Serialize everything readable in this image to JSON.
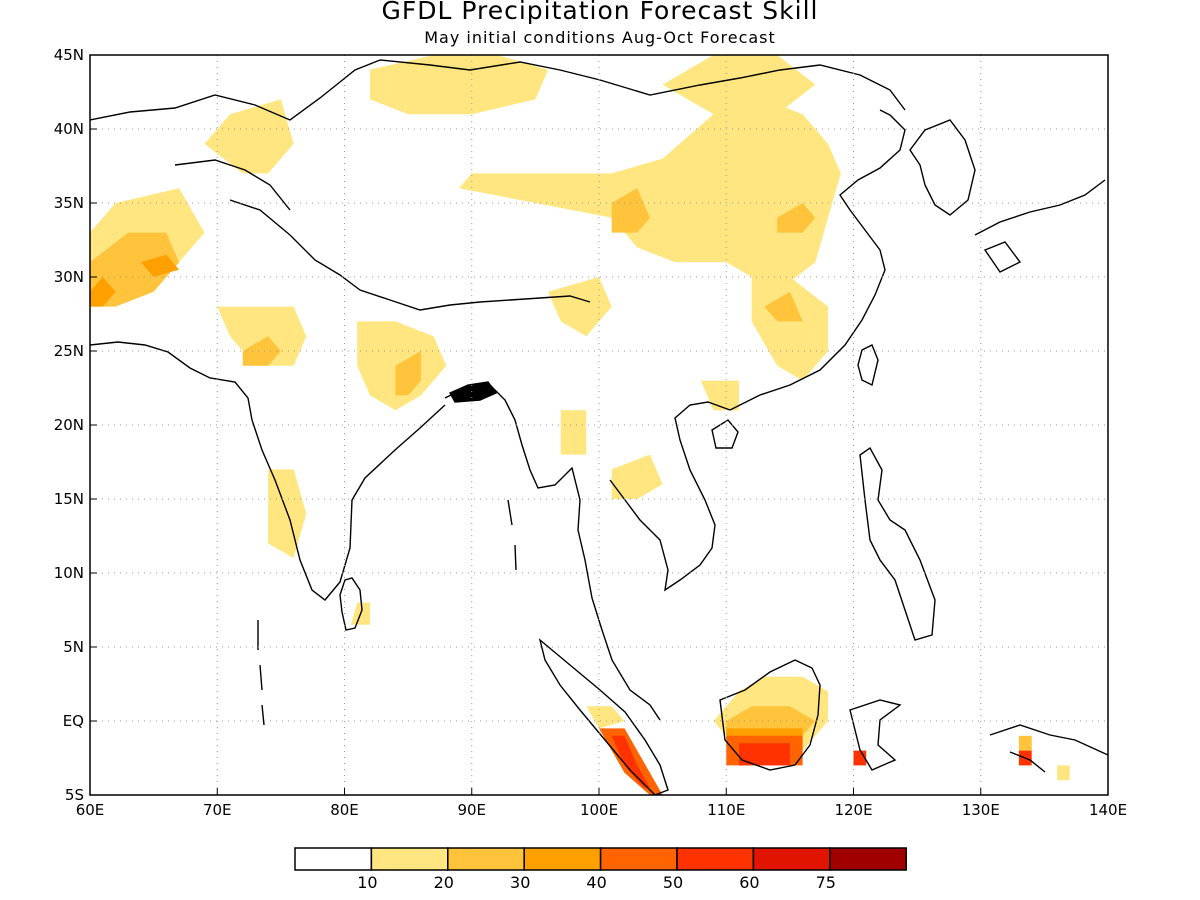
{
  "header": {
    "title": "GFDL Precipitation Forecast Skill",
    "subtitle": "May initial conditions  Aug-Oct Forecast"
  },
  "map": {
    "lon_range": [
      60,
      140
    ],
    "lat_range": [
      -5,
      45
    ],
    "lon_ticks": [
      {
        "value": 60,
        "label": "60E"
      },
      {
        "value": 70,
        "label": "70E"
      },
      {
        "value": 80,
        "label": "80E"
      },
      {
        "value": 90,
        "label": "90E"
      },
      {
        "value": 100,
        "label": "100E"
      },
      {
        "value": 110,
        "label": "110E"
      },
      {
        "value": 120,
        "label": "120E"
      },
      {
        "value": 130,
        "label": "130E"
      },
      {
        "value": 140,
        "label": "140E"
      }
    ],
    "lat_ticks": [
      {
        "value": 45,
        "label": "45N"
      },
      {
        "value": 40,
        "label": "40N"
      },
      {
        "value": 35,
        "label": "35N"
      },
      {
        "value": 30,
        "label": "30N"
      },
      {
        "value": 25,
        "label": "25N"
      },
      {
        "value": 20,
        "label": "20N"
      },
      {
        "value": 15,
        "label": "15N"
      },
      {
        "value": 10,
        "label": "10N"
      },
      {
        "value": 5,
        "label": "5N"
      },
      {
        "value": 0,
        "label": "EQ"
      },
      {
        "value": -5,
        "label": "5S"
      }
    ],
    "grid": true,
    "skill_regions": [
      {
        "level": 1,
        "color": "#ffe680",
        "points": [
          [
            60,
            33
          ],
          [
            62,
            35
          ],
          [
            67,
            36
          ],
          [
            69,
            33
          ],
          [
            66,
            30
          ],
          [
            62,
            30
          ],
          [
            60,
            29
          ]
        ]
      },
      {
        "level": 1,
        "color": "#ffe680",
        "points": [
          [
            69,
            39
          ],
          [
            71,
            41
          ],
          [
            75,
            42
          ],
          [
            76,
            39
          ],
          [
            74,
            37
          ],
          [
            72,
            37
          ]
        ]
      },
      {
        "level": 1,
        "color": "#ffe680",
        "points": [
          [
            70,
            28
          ],
          [
            71,
            26
          ],
          [
            73,
            24
          ],
          [
            76,
            24
          ],
          [
            77,
            26
          ],
          [
            76,
            28
          ],
          [
            73,
            28
          ]
        ]
      },
      {
        "level": 1,
        "color": "#ffe680",
        "points": [
          [
            81,
            27
          ],
          [
            84,
            27
          ],
          [
            87,
            26
          ],
          [
            88,
            24
          ],
          [
            86,
            22
          ],
          [
            84,
            21
          ],
          [
            82,
            22
          ],
          [
            81,
            24
          ]
        ]
      },
      {
        "level": 1,
        "color": "#ffe680",
        "points": [
          [
            74,
            17
          ],
          [
            76,
            17
          ],
          [
            77,
            14
          ],
          [
            76,
            11
          ],
          [
            74,
            12
          ]
        ]
      },
      {
        "level": 1,
        "color": "#ffe680",
        "points": [
          [
            81,
            8
          ],
          [
            82,
            8
          ],
          [
            82,
            6.5
          ],
          [
            80.5,
            6.5
          ]
        ]
      },
      {
        "level": 1,
        "color": "#ffe680",
        "points": [
          [
            82,
            44
          ],
          [
            87,
            45
          ],
          [
            92,
            45
          ],
          [
            96,
            44
          ],
          [
            95,
            42
          ],
          [
            90,
            41
          ],
          [
            85,
            41
          ],
          [
            82,
            42
          ]
        ]
      },
      {
        "level": 1,
        "color": "#ffe680",
        "points": [
          [
            89,
            36
          ],
          [
            95,
            35
          ],
          [
            101,
            34
          ],
          [
            103,
            32
          ],
          [
            106,
            31
          ],
          [
            110,
            31
          ],
          [
            114,
            29
          ],
          [
            117,
            31
          ],
          [
            118,
            34
          ],
          [
            119,
            37
          ],
          [
            118,
            39
          ],
          [
            116,
            41
          ],
          [
            113,
            42
          ],
          [
            109,
            41
          ],
          [
            105,
            38
          ],
          [
            101,
            37
          ],
          [
            96,
            37
          ],
          [
            90,
            37
          ]
        ]
      },
      {
        "level": 1,
        "color": "#ffe680",
        "points": [
          [
            105,
            43
          ],
          [
            109,
            45
          ],
          [
            114,
            45
          ],
          [
            117,
            43
          ],
          [
            114,
            41
          ],
          [
            109,
            41
          ]
        ]
      },
      {
        "level": 1,
        "color": "#ffe680",
        "points": [
          [
            112,
            30
          ],
          [
            115,
            30
          ],
          [
            118,
            28
          ],
          [
            118,
            25
          ],
          [
            116,
            23
          ],
          [
            114,
            24
          ],
          [
            112,
            27
          ]
        ]
      },
      {
        "level": 1,
        "color": "#ffe680",
        "points": [
          [
            96,
            29
          ],
          [
            100,
            30
          ],
          [
            101,
            28
          ],
          [
            99,
            26
          ],
          [
            97,
            27
          ]
        ]
      },
      {
        "level": 1,
        "color": "#ffe680",
        "points": [
          [
            108,
            23
          ],
          [
            111,
            23
          ],
          [
            111,
            21
          ],
          [
            109,
            21
          ]
        ]
      },
      {
        "level": 1,
        "color": "#ffe680",
        "points": [
          [
            97,
            21
          ],
          [
            99,
            21
          ],
          [
            99,
            18
          ],
          [
            97,
            18
          ]
        ]
      },
      {
        "level": 1,
        "color": "#ffe680",
        "points": [
          [
            101,
            17
          ],
          [
            104,
            18
          ],
          [
            105,
            16
          ],
          [
            103,
            15
          ],
          [
            101,
            15
          ]
        ]
      },
      {
        "level": 1,
        "color": "#ffe680",
        "points": [
          [
            109,
            0
          ],
          [
            111,
            2
          ],
          [
            113,
            3
          ],
          [
            116,
            3
          ],
          [
            118,
            2
          ],
          [
            118,
            0
          ],
          [
            116,
            -2
          ],
          [
            112,
            -2
          ],
          [
            110,
            -1
          ]
        ]
      },
      {
        "level": 1,
        "color": "#ffe680",
        "points": [
          [
            99,
            1
          ],
          [
            101,
            1
          ],
          [
            102,
            0
          ],
          [
            100,
            -0.5
          ]
        ]
      },
      {
        "level": 1,
        "color": "#ffe680",
        "points": [
          [
            136,
            -3
          ],
          [
            137,
            -3
          ],
          [
            137,
            -4
          ],
          [
            136,
            -4
          ]
        ]
      },
      {
        "level": 2,
        "color": "#ffc33c",
        "points": [
          [
            60,
            31
          ],
          [
            63,
            33
          ],
          [
            66,
            33
          ],
          [
            67,
            31
          ],
          [
            65,
            29
          ],
          [
            62,
            28
          ],
          [
            60,
            28
          ]
        ]
      },
      {
        "level": 2,
        "color": "#ffc33c",
        "points": [
          [
            72,
            25
          ],
          [
            74,
            26
          ],
          [
            75,
            25
          ],
          [
            74,
            24
          ],
          [
            72,
            24
          ]
        ]
      },
      {
        "level": 2,
        "color": "#ffc33c",
        "points": [
          [
            84,
            24
          ],
          [
            86,
            25
          ],
          [
            86,
            23
          ],
          [
            85,
            22
          ],
          [
            84,
            22
          ]
        ]
      },
      {
        "level": 2,
        "color": "#ffc33c",
        "points": [
          [
            101,
            35
          ],
          [
            103,
            36
          ],
          [
            104,
            34
          ],
          [
            103,
            33
          ],
          [
            101,
            33
          ]
        ]
      },
      {
        "level": 2,
        "color": "#ffc33c",
        "points": [
          [
            114,
            34
          ],
          [
            116,
            35
          ],
          [
            117,
            34
          ],
          [
            116,
            33
          ],
          [
            114,
            33
          ]
        ]
      },
      {
        "level": 2,
        "color": "#ffc33c",
        "points": [
          [
            113,
            28
          ],
          [
            115,
            29
          ],
          [
            116,
            27
          ],
          [
            114,
            27
          ]
        ]
      },
      {
        "level": 2,
        "color": "#ffc33c",
        "points": [
          [
            110,
            0
          ],
          [
            112,
            1
          ],
          [
            115,
            1
          ],
          [
            117,
            0
          ],
          [
            116,
            -1
          ],
          [
            112,
            -1
          ],
          [
            110,
            -1
          ]
        ]
      },
      {
        "level": 2,
        "color": "#ffc33c",
        "points": [
          [
            133,
            -1
          ],
          [
            134,
            -1
          ],
          [
            134,
            -2
          ],
          [
            133,
            -2
          ]
        ]
      },
      {
        "level": 3,
        "color": "#ffa000",
        "points": [
          [
            60,
            29
          ],
          [
            61,
            30
          ],
          [
            62,
            29
          ],
          [
            61,
            28
          ],
          [
            60,
            28
          ]
        ]
      },
      {
        "level": 3,
        "color": "#ffa000",
        "points": [
          [
            64,
            31
          ],
          [
            66,
            31.5
          ],
          [
            67,
            30.5
          ],
          [
            65,
            30
          ]
        ]
      },
      {
        "level": 3,
        "color": "#ffa000",
        "points": [
          [
            110,
            -0.5
          ],
          [
            116,
            -0.5
          ],
          [
            116,
            -1.5
          ],
          [
            110,
            -1.5
          ]
        ]
      },
      {
        "level": 4,
        "color": "#ff6400",
        "points": [
          [
            100,
            -0.5
          ],
          [
            102,
            -0.5
          ],
          [
            104,
            -3.5
          ],
          [
            105,
            -5
          ],
          [
            104,
            -5
          ],
          [
            102,
            -3.5
          ]
        ]
      },
      {
        "level": 4,
        "color": "#ff6400",
        "points": [
          [
            110,
            -1
          ],
          [
            116,
            -1
          ],
          [
            116,
            -3
          ],
          [
            110,
            -3
          ]
        ]
      },
      {
        "level": 5,
        "color": "#ff3200",
        "points": [
          [
            101,
            -1
          ],
          [
            102,
            -1
          ],
          [
            103,
            -3
          ],
          [
            104,
            -4.5
          ],
          [
            103.5,
            -4.5
          ],
          [
            102,
            -3
          ]
        ]
      },
      {
        "level": 5,
        "color": "#ff3200",
        "points": [
          [
            111,
            -1.5
          ],
          [
            115,
            -1.5
          ],
          [
            115,
            -3
          ],
          [
            111,
            -3
          ]
        ]
      },
      {
        "level": 5,
        "color": "#ff3200",
        "points": [
          [
            120,
            -2
          ],
          [
            121,
            -2
          ],
          [
            121,
            -3
          ],
          [
            120,
            -3
          ]
        ]
      },
      {
        "level": 5,
        "color": "#ff3200",
        "points": [
          [
            133,
            -2
          ],
          [
            134,
            -2
          ],
          [
            134,
            -3
          ],
          [
            133,
            -3
          ]
        ]
      }
    ]
  },
  "colorbar": {
    "colors": [
      "#ffffff",
      "#ffe680",
      "#ffc33c",
      "#ffa000",
      "#ff6400",
      "#ff3200",
      "#e11400",
      "#a00000"
    ],
    "labels": [
      "10",
      "20",
      "30",
      "40",
      "50",
      "60",
      "75"
    ]
  }
}
